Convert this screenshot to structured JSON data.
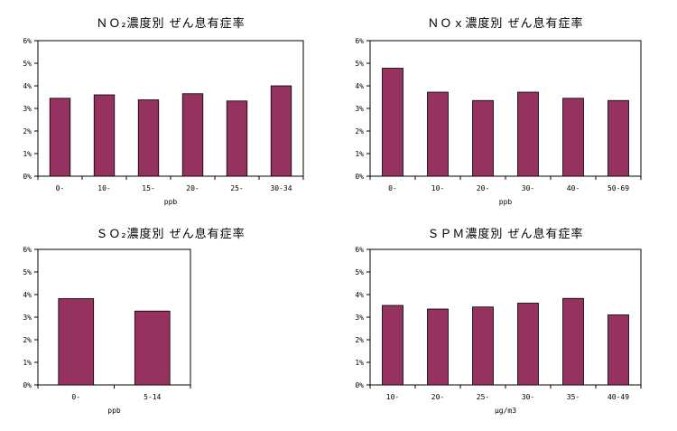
{
  "chart_data": [
    {
      "type": "bar",
      "title": "ＮＯ₂濃度別 ぜん息有症率",
      "xlabel": "ppb",
      "ylabel": "",
      "categories": [
        "0-",
        "10-",
        "15-",
        "20-",
        "25-",
        "30-34"
      ],
      "values": [
        3.45,
        3.6,
        3.38,
        3.65,
        3.33,
        4.0
      ],
      "ylim": [
        0,
        6
      ],
      "yticks": [
        "0%",
        "1%",
        "2%",
        "3%",
        "4%",
        "5%",
        "6%"
      ],
      "bar_color": "#96325f",
      "grid": false
    },
    {
      "type": "bar",
      "title": "ＮＯｘ濃度別 ぜん息有症率",
      "xlabel": "ppb",
      "ylabel": "",
      "categories": [
        "0-",
        "10-",
        "20-",
        "30-",
        "40-",
        "50-69"
      ],
      "values": [
        4.78,
        3.72,
        3.35,
        3.72,
        3.45,
        3.35
      ],
      "ylim": [
        0,
        6
      ],
      "yticks": [
        "0%",
        "1%",
        "2%",
        "3%",
        "4%",
        "5%",
        "6%"
      ],
      "bar_color": "#96325f",
      "grid": false
    },
    {
      "type": "bar",
      "title": "ＳＯ₂濃度別 ぜん息有症率",
      "xlabel": "ppb",
      "ylabel": "",
      "categories": [
        "0-",
        "5-14"
      ],
      "values": [
        3.82,
        3.27
      ],
      "ylim": [
        0,
        6
      ],
      "yticks": [
        "0%",
        "1%",
        "2%",
        "3%",
        "4%",
        "5%",
        "6%"
      ],
      "bar_color": "#96325f",
      "grid": false
    },
    {
      "type": "bar",
      "title": "ＳＰＭ濃度別 ぜん息有症率",
      "xlabel": "μg/m3",
      "ylabel": "",
      "categories": [
        "10-",
        "20-",
        "25-",
        "30-",
        "35-",
        "40-49"
      ],
      "values": [
        3.52,
        3.36,
        3.45,
        3.62,
        3.83,
        3.1
      ],
      "ylim": [
        0,
        6
      ],
      "yticks": [
        "0%",
        "1%",
        "2%",
        "3%",
        "4%",
        "5%",
        "6%"
      ],
      "bar_color": "#96325f",
      "grid": false
    }
  ]
}
